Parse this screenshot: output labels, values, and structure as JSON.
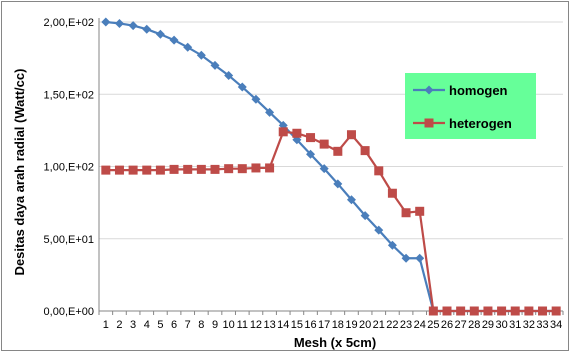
{
  "chart_data": {
    "type": "line",
    "xlabel": "Mesh (x 5cm)",
    "ylabel": "Desitas daya arah radial (Watt/cc)",
    "ylim": [
      0,
      200
    ],
    "yticks": [
      0,
      50,
      100,
      150,
      200
    ],
    "ytick_labels": [
      "0,00,E+00",
      "5,00,E+01",
      "1,00,E+02",
      "1,50,E+02",
      "2,00,E+02"
    ],
    "grid": "horizontal",
    "legend_position": "right",
    "categories": [
      "1",
      "2",
      "3",
      "4",
      "5",
      "6",
      "7",
      "8",
      "9",
      "10",
      "11",
      "12",
      "13",
      "14",
      "15",
      "16",
      "17",
      "18",
      "19",
      "20",
      "21",
      "22",
      "23",
      "24",
      "25",
      "26",
      "27",
      "28",
      "29",
      "30",
      "31",
      "32",
      "33",
      "34"
    ],
    "series": [
      {
        "name": "homogen",
        "color": "#4a7ebb",
        "marker": "diamond",
        "values": [
          200,
          199,
          197.5,
          195,
          191.5,
          187.5,
          182.5,
          177,
          170,
          163,
          155,
          146.5,
          137.5,
          128.5,
          118.5,
          108.5,
          98.5,
          88,
          77,
          66,
          56,
          45.5,
          36.5,
          36.5,
          0,
          0,
          0,
          0,
          0,
          0,
          0,
          0,
          0,
          0
        ]
      },
      {
        "name": "heterogen",
        "color": "#be4b48",
        "marker": "square",
        "values": [
          97.5,
          97.5,
          97.5,
          97.5,
          97.5,
          98,
          98,
          98,
          98,
          98.5,
          98.5,
          99,
          99,
          124,
          123,
          120,
          115.5,
          110.5,
          122,
          111,
          97,
          81.5,
          68,
          69,
          0,
          0,
          0,
          0,
          0,
          0,
          0,
          0,
          0,
          0
        ]
      }
    ]
  }
}
